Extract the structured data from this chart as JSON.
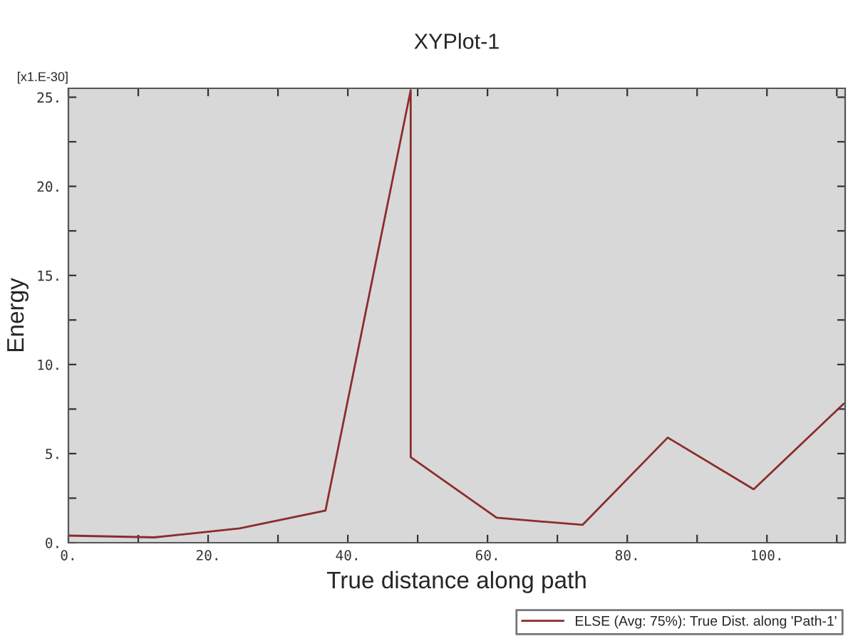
{
  "chart_data": {
    "type": "line",
    "title": "XYPlot-1",
    "xlabel": "True distance along path",
    "ylabel": "Energy",
    "annotations": [
      "[x1.E-30]"
    ],
    "series": [
      {
        "name": "ELSE (Avg: 75%): True Dist. along 'Path-1'",
        "color": "#8b2c2c",
        "x": [
          0,
          12.3,
          24.5,
          36.8,
          49,
          49,
          61.3,
          73.6,
          85.8,
          98.1,
          111
        ],
        "values": [
          0.4,
          0.3,
          0.8,
          1.8,
          25.4,
          4.8,
          1.4,
          1.0,
          5.9,
          3.0,
          7.8
        ]
      }
    ],
    "xlim": [
      0,
      111.2
    ],
    "ylim": [
      0,
      25.5
    ],
    "xticks": [
      {
        "value": 0,
        "label": "0."
      },
      {
        "value": 10,
        "label": null
      },
      {
        "value": 20,
        "label": "20."
      },
      {
        "value": 30,
        "label": null
      },
      {
        "value": 40,
        "label": "40."
      },
      {
        "value": 50,
        "label": null
      },
      {
        "value": 60,
        "label": "60."
      },
      {
        "value": 70,
        "label": null
      },
      {
        "value": 80,
        "label": "80."
      },
      {
        "value": 90,
        "label": null
      },
      {
        "value": 100,
        "label": "100."
      },
      {
        "value": 110,
        "label": null
      }
    ],
    "yticks": [
      {
        "value": 0,
        "label": "0."
      },
      {
        "value": 2.5,
        "label": null
      },
      {
        "value": 5,
        "label": "5."
      },
      {
        "value": 7.5,
        "label": null
      },
      {
        "value": 10,
        "label": "10."
      },
      {
        "value": 12.5,
        "label": null
      },
      {
        "value": 15,
        "label": "15."
      },
      {
        "value": 17.5,
        "label": null
      },
      {
        "value": 20,
        "label": "20."
      },
      {
        "value": 22.5,
        "label": null
      },
      {
        "value": 25,
        "label": "25."
      }
    ],
    "legend": "bottom right",
    "grid": false,
    "line_style": "solid",
    "marker": "none"
  }
}
